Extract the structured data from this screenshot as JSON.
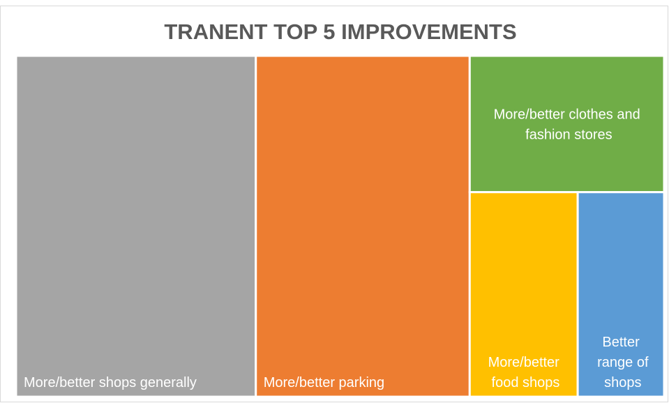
{
  "chart_data": {
    "type": "treemap",
    "title": "TRANENT TOP 5 IMPROVEMENTS",
    "categories": [
      "More/better shops generally",
      "More/better parking",
      "More/better clothes and fashion stores",
      "More/better food shops",
      "Better range of shops"
    ],
    "values": [
      37,
      33,
      12,
      10,
      8
    ],
    "colors": [
      "#a5a5a5",
      "#ed7d31",
      "#70ad47",
      "#ffc000",
      "#5b9bd5"
    ]
  }
}
